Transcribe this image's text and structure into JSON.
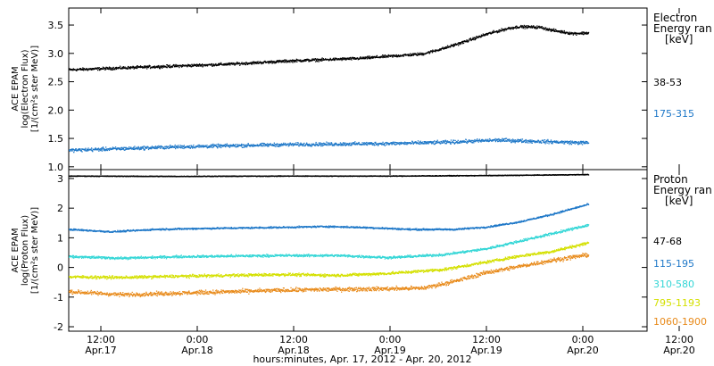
{
  "chart_data": [
    {
      "type": "scatter",
      "panel": "electron",
      "ylabel": [
        "ACE EPAM",
        "log(Electron Flux)",
        "[1/(cm²s ster MeV)]"
      ],
      "ylim": [
        0.95,
        3.8
      ],
      "yticks": [
        1.0,
        1.5,
        2.0,
        2.5,
        3.0,
        3.5
      ],
      "ytick_labels": [
        "1.0",
        "1.5",
        "2.0",
        "2.5",
        "3.0",
        "3.5"
      ],
      "legend_title": [
        "Electron",
        "Energy ran",
        "[keV]"
      ],
      "series": [
        {
          "name": "38-53",
          "color": "#000000",
          "points": [
            [
              0,
              2.72
            ],
            [
              6,
              2.74
            ],
            [
              12,
              2.76
            ],
            [
              18,
              2.78
            ],
            [
              24,
              2.8
            ],
            [
              30,
              2.82
            ],
            [
              36,
              2.85
            ],
            [
              42,
              2.88
            ],
            [
              48,
              2.9
            ],
            [
              54,
              2.92
            ],
            [
              60,
              2.96
            ],
            [
              66,
              3.0
            ],
            [
              70,
              3.1
            ],
            [
              74,
              3.22
            ],
            [
              78,
              3.35
            ],
            [
              82,
              3.45
            ],
            [
              84,
              3.48
            ],
            [
              88,
              3.47
            ],
            [
              90,
              3.42
            ],
            [
              94,
              3.36
            ],
            [
              97,
              3.37
            ]
          ]
        },
        {
          "name": "175-315",
          "color": "#1f78c8",
          "points": [
            [
              0,
              1.3
            ],
            [
              10,
              1.33
            ],
            [
              20,
              1.36
            ],
            [
              30,
              1.38
            ],
            [
              40,
              1.4
            ],
            [
              50,
              1.41
            ],
            [
              60,
              1.42
            ],
            [
              70,
              1.44
            ],
            [
              80,
              1.48
            ],
            [
              90,
              1.45
            ],
            [
              97,
              1.43
            ]
          ]
        }
      ]
    },
    {
      "type": "scatter",
      "panel": "proton",
      "ylabel": [
        "ACE EPAM",
        "log(Proton Flux)",
        "[1/(cm²s ster MeV)]"
      ],
      "ylim": [
        -2.15,
        3.3
      ],
      "yticks": [
        -2,
        -1,
        0,
        1,
        2,
        3
      ],
      "ytick_labels": [
        "-2",
        "-1",
        "0",
        "1",
        "2",
        "3"
      ],
      "legend_title": [
        "Proton",
        "Energy ran",
        "[keV]"
      ],
      "series": [
        {
          "name": "47-68",
          "color": "#000000",
          "points": [
            [
              0,
              3.1
            ],
            [
              20,
              3.09
            ],
            [
              40,
              3.1
            ],
            [
              60,
              3.1
            ],
            [
              80,
              3.12
            ],
            [
              97,
              3.15
            ]
          ]
        },
        {
          "name": "115-195",
          "color": "#1f78c8",
          "points": [
            [
              0,
              1.3
            ],
            [
              8,
              1.22
            ],
            [
              16,
              1.3
            ],
            [
              24,
              1.33
            ],
            [
              32,
              1.35
            ],
            [
              40,
              1.37
            ],
            [
              48,
              1.4
            ],
            [
              56,
              1.36
            ],
            [
              64,
              1.3
            ],
            [
              72,
              1.3
            ],
            [
              78,
              1.38
            ],
            [
              84,
              1.55
            ],
            [
              90,
              1.8
            ],
            [
              97,
              2.15
            ]
          ]
        },
        {
          "name": "310-580",
          "color": "#33d6d6",
          "points": [
            [
              0,
              0.38
            ],
            [
              10,
              0.33
            ],
            [
              20,
              0.38
            ],
            [
              30,
              0.4
            ],
            [
              40,
              0.42
            ],
            [
              50,
              0.42
            ],
            [
              60,
              0.35
            ],
            [
              70,
              0.45
            ],
            [
              78,
              0.65
            ],
            [
              84,
              0.9
            ],
            [
              90,
              1.15
            ],
            [
              97,
              1.45
            ]
          ]
        },
        {
          "name": "795-1193",
          "color": "#d4e000",
          "points": [
            [
              0,
              -0.3
            ],
            [
              10,
              -0.32
            ],
            [
              20,
              -0.28
            ],
            [
              30,
              -0.25
            ],
            [
              40,
              -0.22
            ],
            [
              50,
              -0.25
            ],
            [
              60,
              -0.18
            ],
            [
              70,
              -0.05
            ],
            [
              78,
              0.2
            ],
            [
              84,
              0.4
            ],
            [
              90,
              0.55
            ],
            [
              97,
              0.85
            ]
          ]
        },
        {
          "name": "1060-1900",
          "color": "#e88a1a",
          "points": [
            [
              0,
              -0.8
            ],
            [
              10,
              -0.9
            ],
            [
              20,
              -0.85
            ],
            [
              30,
              -0.8
            ],
            [
              40,
              -0.75
            ],
            [
              50,
              -0.72
            ],
            [
              60,
              -0.7
            ],
            [
              66,
              -0.68
            ],
            [
              72,
              -0.45
            ],
            [
              78,
              -0.15
            ],
            [
              84,
              0.05
            ],
            [
              90,
              0.25
            ],
            [
              97,
              0.45
            ]
          ]
        }
      ]
    }
  ],
  "x_axis": {
    "xlim_hours": [
      0,
      108
    ],
    "ticks": [
      {
        "hour": 6,
        "time": "12:00",
        "date": "Apr.17"
      },
      {
        "hour": 24,
        "time": "0:00",
        "date": "Apr.18"
      },
      {
        "hour": 42,
        "time": "12:00",
        "date": "Apr.18"
      },
      {
        "hour": 60,
        "time": "0:00",
        "date": "Apr.19"
      },
      {
        "hour": 78,
        "time": "12:00",
        "date": "Apr.19"
      },
      {
        "hour": 96,
        "time": "0:00",
        "date": "Apr.20"
      },
      {
        "hour": 114,
        "time": "12:00",
        "date": "Apr.20"
      }
    ],
    "xlabel": "hours:minutes, Apr. 17, 2012 - Apr. 20, 2012"
  }
}
